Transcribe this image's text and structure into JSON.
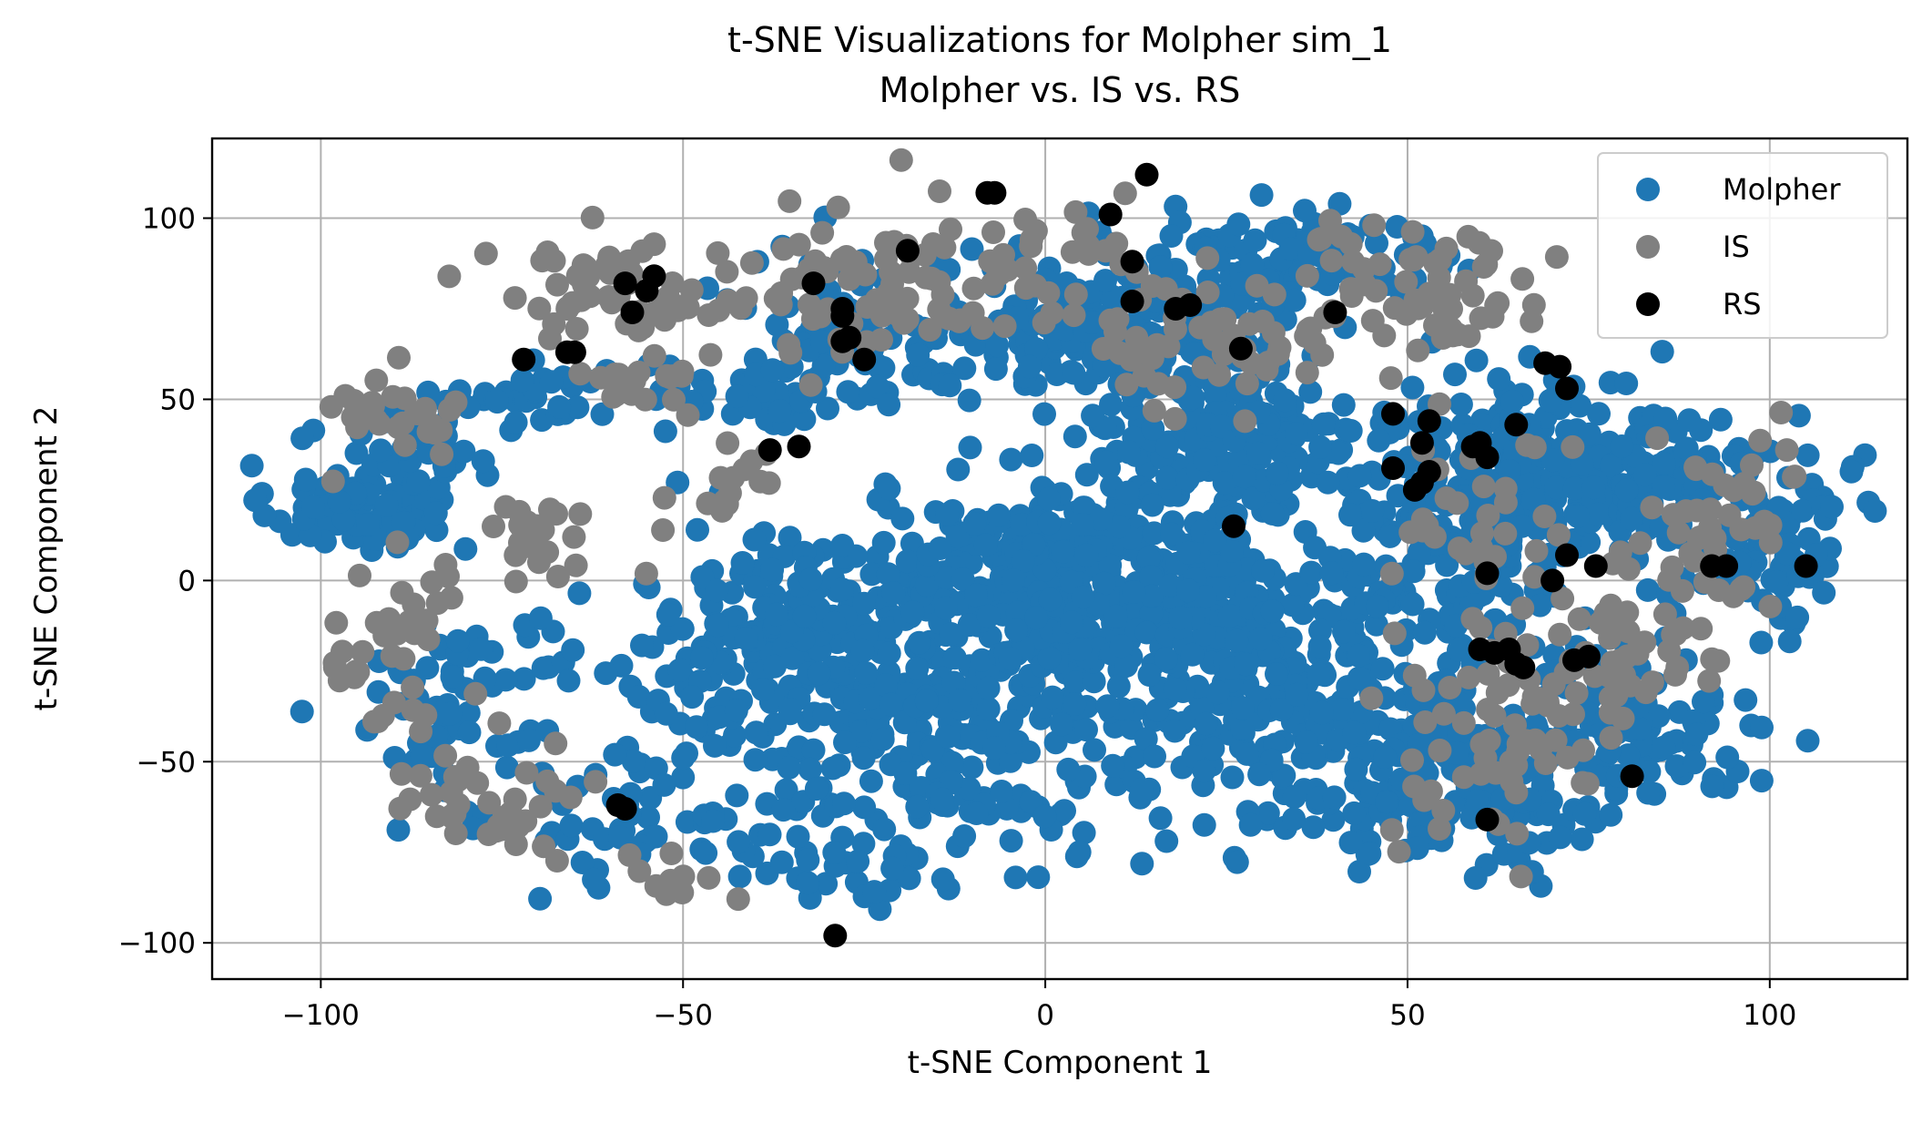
{
  "chart_data": {
    "type": "scatter",
    "title": "t-SNE Visualizations for Molpher sim_1",
    "subtitle": "Molpher vs. IS vs. RS",
    "xlabel": "t-SNE Component 1",
    "ylabel": "t-SNE Component 2",
    "xlim": [
      -115,
      119
    ],
    "ylim": [
      -110,
      122
    ],
    "xticks": [
      -100,
      -50,
      0,
      50,
      100
    ],
    "yticks": [
      -100,
      -50,
      0,
      50,
      100
    ],
    "xtick_labels": [
      "−100",
      "−50",
      "0",
      "50",
      "100"
    ],
    "ytick_labels": [
      "−100",
      "−50",
      "0",
      "50",
      "100"
    ],
    "grid": true,
    "legend_position": "top-right",
    "series": [
      {
        "name": "Molpher",
        "color": "#1f77b4",
        "clusters": [
          {
            "cx": -95,
            "cy": 20,
            "sx": 6,
            "sy": 6,
            "n": 90
          },
          {
            "cx": -88,
            "cy": 40,
            "sx": 6,
            "sy": 6,
            "n": 40
          },
          {
            "cx": -80,
            "cy": -30,
            "sx": 8,
            "sy": 15,
            "n": 70
          },
          {
            "cx": -70,
            "cy": 50,
            "sx": 5,
            "sy": 4,
            "n": 30
          },
          {
            "cx": -55,
            "cy": -65,
            "sx": 10,
            "sy": 10,
            "n": 60
          },
          {
            "cx": -40,
            "cy": -15,
            "sx": 10,
            "sy": 15,
            "n": 110
          },
          {
            "cx": -40,
            "cy": 50,
            "sx": 8,
            "sy": 5,
            "n": 40
          },
          {
            "cx": -25,
            "cy": 70,
            "sx": 8,
            "sy": 10,
            "n": 90
          },
          {
            "cx": -20,
            "cy": -25,
            "sx": 14,
            "sy": 20,
            "n": 300
          },
          {
            "cx": 5,
            "cy": 0,
            "sx": 12,
            "sy": 15,
            "n": 350
          },
          {
            "cx": 10,
            "cy": 70,
            "sx": 12,
            "sy": 10,
            "n": 200
          },
          {
            "cx": 25,
            "cy": -20,
            "sx": 10,
            "sy": 15,
            "n": 220
          },
          {
            "cx": 25,
            "cy": 40,
            "sx": 10,
            "sy": 12,
            "n": 160
          },
          {
            "cx": 35,
            "cy": 90,
            "sx": 10,
            "sy": 8,
            "n": 80
          },
          {
            "cx": 45,
            "cy": -50,
            "sx": 10,
            "sy": 15,
            "n": 150
          },
          {
            "cx": 55,
            "cy": 10,
            "sx": 12,
            "sy": 20,
            "n": 200
          },
          {
            "cx": 65,
            "cy": -60,
            "sx": 8,
            "sy": 12,
            "n": 80
          },
          {
            "cx": 70,
            "cy": 30,
            "sx": 8,
            "sy": 12,
            "n": 110
          },
          {
            "cx": 80,
            "cy": -40,
            "sx": 8,
            "sy": 10,
            "n": 90
          },
          {
            "cx": 85,
            "cy": 30,
            "sx": 8,
            "sy": 10,
            "n": 90
          },
          {
            "cx": 100,
            "cy": 10,
            "sx": 6,
            "sy": 12,
            "n": 90
          },
          {
            "cx": -5,
            "cy": -60,
            "sx": 15,
            "sy": 12,
            "n": 60
          },
          {
            "cx": -30,
            "cy": -80,
            "sx": 8,
            "sy": 8,
            "n": 25
          }
        ]
      },
      {
        "name": "IS",
        "color": "#808080",
        "clusters": [
          {
            "cx": -90,
            "cy": 45,
            "sx": 5,
            "sy": 6,
            "n": 30
          },
          {
            "cx": -90,
            "cy": -15,
            "sx": 6,
            "sy": 15,
            "n": 40
          },
          {
            "cx": -75,
            "cy": -60,
            "sx": 6,
            "sy": 8,
            "n": 40
          },
          {
            "cx": -70,
            "cy": 10,
            "sx": 4,
            "sy": 6,
            "n": 20
          },
          {
            "cx": -60,
            "cy": 80,
            "sx": 8,
            "sy": 8,
            "n": 50
          },
          {
            "cx": -55,
            "cy": 55,
            "sx": 4,
            "sy": 4,
            "n": 20
          },
          {
            "cx": -45,
            "cy": 25,
            "sx": 4,
            "sy": 6,
            "n": 15
          },
          {
            "cx": -30,
            "cy": 80,
            "sx": 8,
            "sy": 12,
            "n": 60
          },
          {
            "cx": -5,
            "cy": 85,
            "sx": 8,
            "sy": 10,
            "n": 50
          },
          {
            "cx": 20,
            "cy": 65,
            "sx": 8,
            "sy": 10,
            "n": 50
          },
          {
            "cx": 45,
            "cy": 80,
            "sx": 8,
            "sy": 10,
            "n": 50
          },
          {
            "cx": 60,
            "cy": -45,
            "sx": 6,
            "sy": 15,
            "n": 50
          },
          {
            "cx": 65,
            "cy": 15,
            "sx": 8,
            "sy": 15,
            "n": 40
          },
          {
            "cx": 75,
            "cy": -30,
            "sx": 6,
            "sy": 10,
            "n": 30
          },
          {
            "cx": 85,
            "cy": -10,
            "sx": 8,
            "sy": 10,
            "n": 40
          },
          {
            "cx": 95,
            "cy": 20,
            "sx": 6,
            "sy": 10,
            "n": 30
          },
          {
            "cx": 60,
            "cy": 80,
            "sx": 6,
            "sy": 8,
            "n": 20
          },
          {
            "cx": -50,
            "cy": -80,
            "sx": 5,
            "sy": 4,
            "n": 10
          }
        ]
      },
      {
        "name": "RS",
        "color": "#000000",
        "points": [
          [
            -72,
            61
          ],
          [
            -66,
            63
          ],
          [
            -65,
            63
          ],
          [
            -58,
            82
          ],
          [
            -57,
            74
          ],
          [
            -55,
            80
          ],
          [
            -54,
            84
          ],
          [
            -32,
            82
          ],
          [
            -28,
            73
          ],
          [
            -28,
            75
          ],
          [
            -28,
            66
          ],
          [
            -25,
            61
          ],
          [
            -27,
            67
          ],
          [
            -38,
            36
          ],
          [
            -34,
            37
          ],
          [
            -19,
            91
          ],
          [
            -8,
            107
          ],
          [
            -7,
            107
          ],
          [
            9,
            101
          ],
          [
            12,
            88
          ],
          [
            12,
            77
          ],
          [
            14,
            112
          ],
          [
            18,
            75
          ],
          [
            20,
            76
          ],
          [
            27,
            64
          ],
          [
            40,
            74
          ],
          [
            26,
            15
          ],
          [
            48,
            46
          ],
          [
            48,
            31
          ],
          [
            51,
            25
          ],
          [
            52,
            27
          ],
          [
            52,
            38
          ],
          [
            53,
            30
          ],
          [
            53,
            44
          ],
          [
            59,
            37
          ],
          [
            60,
            38
          ],
          [
            61,
            34
          ],
          [
            65,
            43
          ],
          [
            69,
            60
          ],
          [
            71,
            59
          ],
          [
            72,
            53
          ],
          [
            61,
            2
          ],
          [
            70,
            0
          ],
          [
            72,
            7
          ],
          [
            76,
            4
          ],
          [
            60,
            -19
          ],
          [
            62,
            -20
          ],
          [
            64,
            -19
          ],
          [
            65,
            -23
          ],
          [
            66,
            -24
          ],
          [
            73,
            -22
          ],
          [
            75,
            -21
          ],
          [
            92,
            4
          ],
          [
            94,
            4
          ],
          [
            105,
            4
          ],
          [
            81,
            -54
          ],
          [
            61,
            -66
          ],
          [
            -59,
            -62
          ],
          [
            -58,
            -63
          ],
          [
            -29,
            -98
          ]
        ]
      }
    ]
  }
}
